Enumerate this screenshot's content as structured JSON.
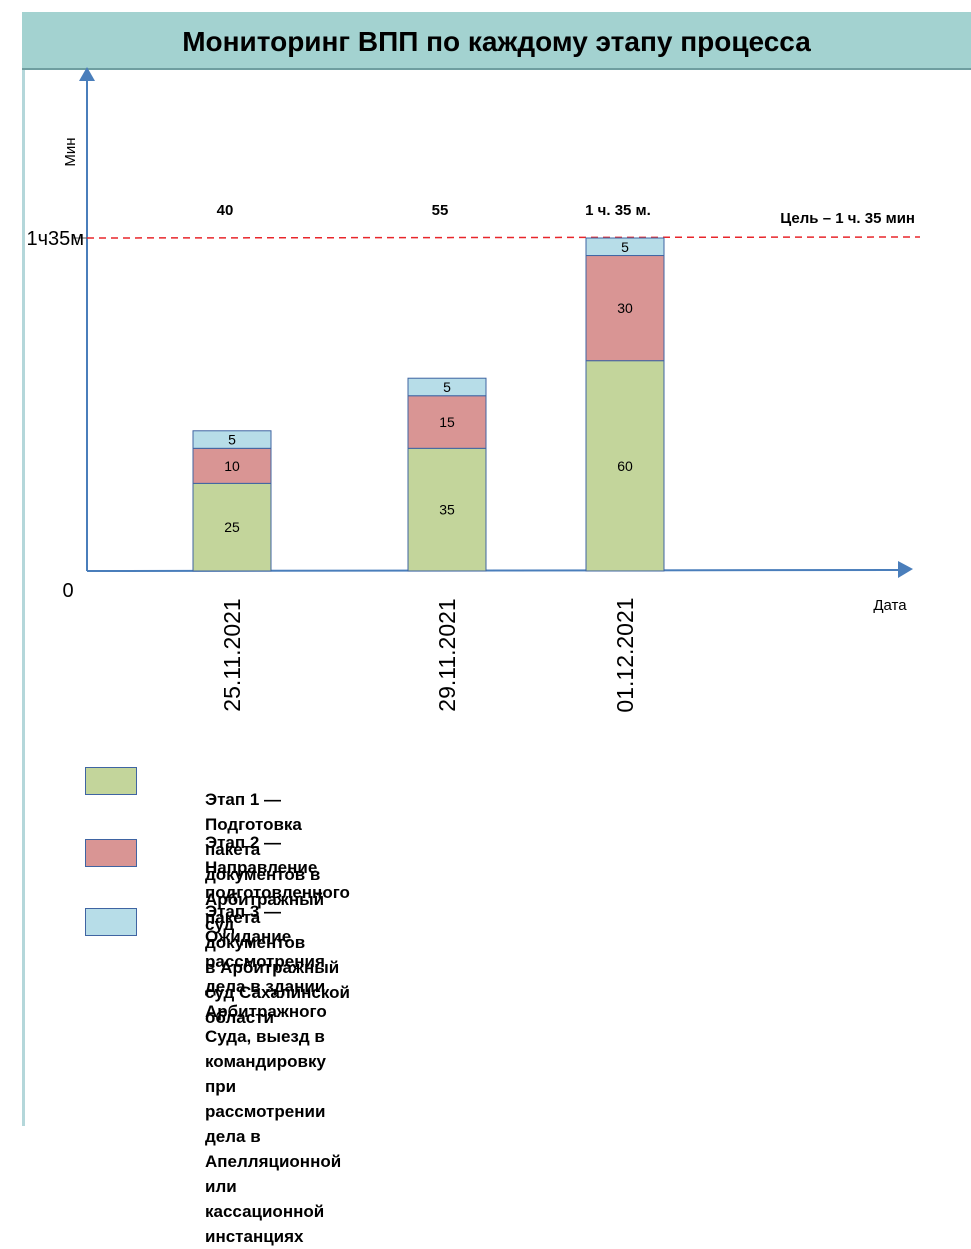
{
  "header": {
    "title": "Мониторинг ВПП по каждому этапу процесса"
  },
  "colors": {
    "stage1": "#c3d59b",
    "stage2": "#d99594",
    "stage3": "#b7dde8",
    "axis": "#4a7ebb",
    "target": "#e8262b",
    "header_bg": "#a3d2d0"
  },
  "chart_data": {
    "type": "bar",
    "stacked": true,
    "categories": [
      "25.11.2021",
      "29.11.2021",
      "01.12.2021"
    ],
    "series": [
      {
        "key": "stage1",
        "values": [
          25,
          35,
          60
        ]
      },
      {
        "key": "stage2",
        "values": [
          10,
          15,
          30
        ]
      },
      {
        "key": "stage3",
        "values": [
          5,
          5,
          5
        ]
      }
    ],
    "totals_labels": [
      "40",
      "55",
      "1 ч. 35 м."
    ],
    "ylabel": "Мин",
    "xlabel": "Дата",
    "y_origin_label": "0",
    "target": {
      "value": 95,
      "tick_label": "1ч35м",
      "label": "Цель – 1 ч. 35 мин"
    },
    "ylim": [
      0,
      95
    ],
    "grid": false,
    "legend_position": "bottom"
  },
  "legend": [
    {
      "key": "stage1",
      "text": "Этап 1 — Подготовка пакета документов в Арбитражный суд"
    },
    {
      "key": "stage2",
      "text": "Этап 2 — Направление подготовленного пакета документов\nв Арбитражный суд Сахалинской области"
    },
    {
      "key": "stage3",
      "text": "Этап 3 — Ожидание рассмотрения дела в здании Арбитражного\nСуда,  выезд в командировку при рассмотрении дела в\nАпелляционной или кассационной инстанциях"
    }
  ]
}
